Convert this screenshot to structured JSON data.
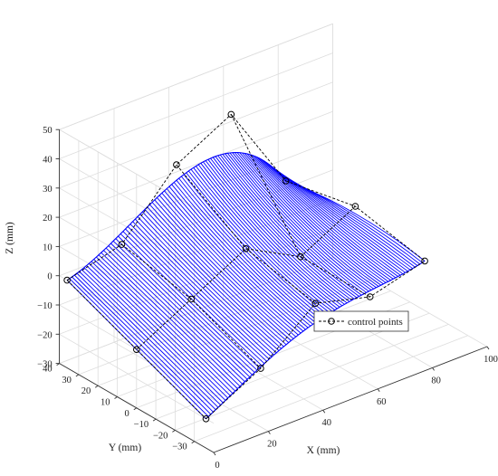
{
  "chart_data": {
    "type": "line",
    "subtype": "3d-surface-with-control-polygon",
    "xlabel": "X (mm)",
    "ylabel": "Y (mm)",
    "zlabel": "Z (mm)",
    "xlim": [
      0,
      100
    ],
    "ylim": [
      -40,
      40
    ],
    "zlim": [
      -30,
      50
    ],
    "x_ticks": [
      "0",
      "20",
      "40",
      "60",
      "80",
      "100"
    ],
    "y_ticks": [
      "-30",
      "-20",
      "-10",
      "0",
      "10",
      "20",
      "30",
      "40"
    ],
    "z_ticks": [
      "-30",
      "-20",
      "-10",
      "0",
      "10",
      "20",
      "30",
      "40",
      "50"
    ],
    "grid": true,
    "legend_position": "lower-right",
    "series": [
      {
        "name": "control points",
        "style": "dashed-black-circles",
        "color": "#000000",
        "rows": [
          [
            [
              0,
              36,
              0
            ],
            [
              20,
              36,
              5
            ],
            [
              40,
              36,
              25
            ],
            [
              60,
              36,
              35
            ],
            [
              80,
              36,
              5
            ]
          ],
          [
            [
              0,
              0,
              -10
            ],
            [
              20,
              0,
              0
            ],
            [
              40,
              0,
              10
            ],
            [
              60,
              0,
              0
            ],
            [
              80,
              0,
              10
            ]
          ],
          [
            [
              0,
              -36,
              -20
            ],
            [
              20,
              -36,
              -10
            ],
            [
              40,
              -36,
              5
            ],
            [
              60,
              -36,
              0
            ],
            [
              80,
              -36,
              5
            ]
          ]
        ]
      },
      {
        "style": "surface-ribbons",
        "color": "#0000ff",
        "description_points": "s-shaped ribbon surface generated from the control net"
      }
    ]
  }
}
